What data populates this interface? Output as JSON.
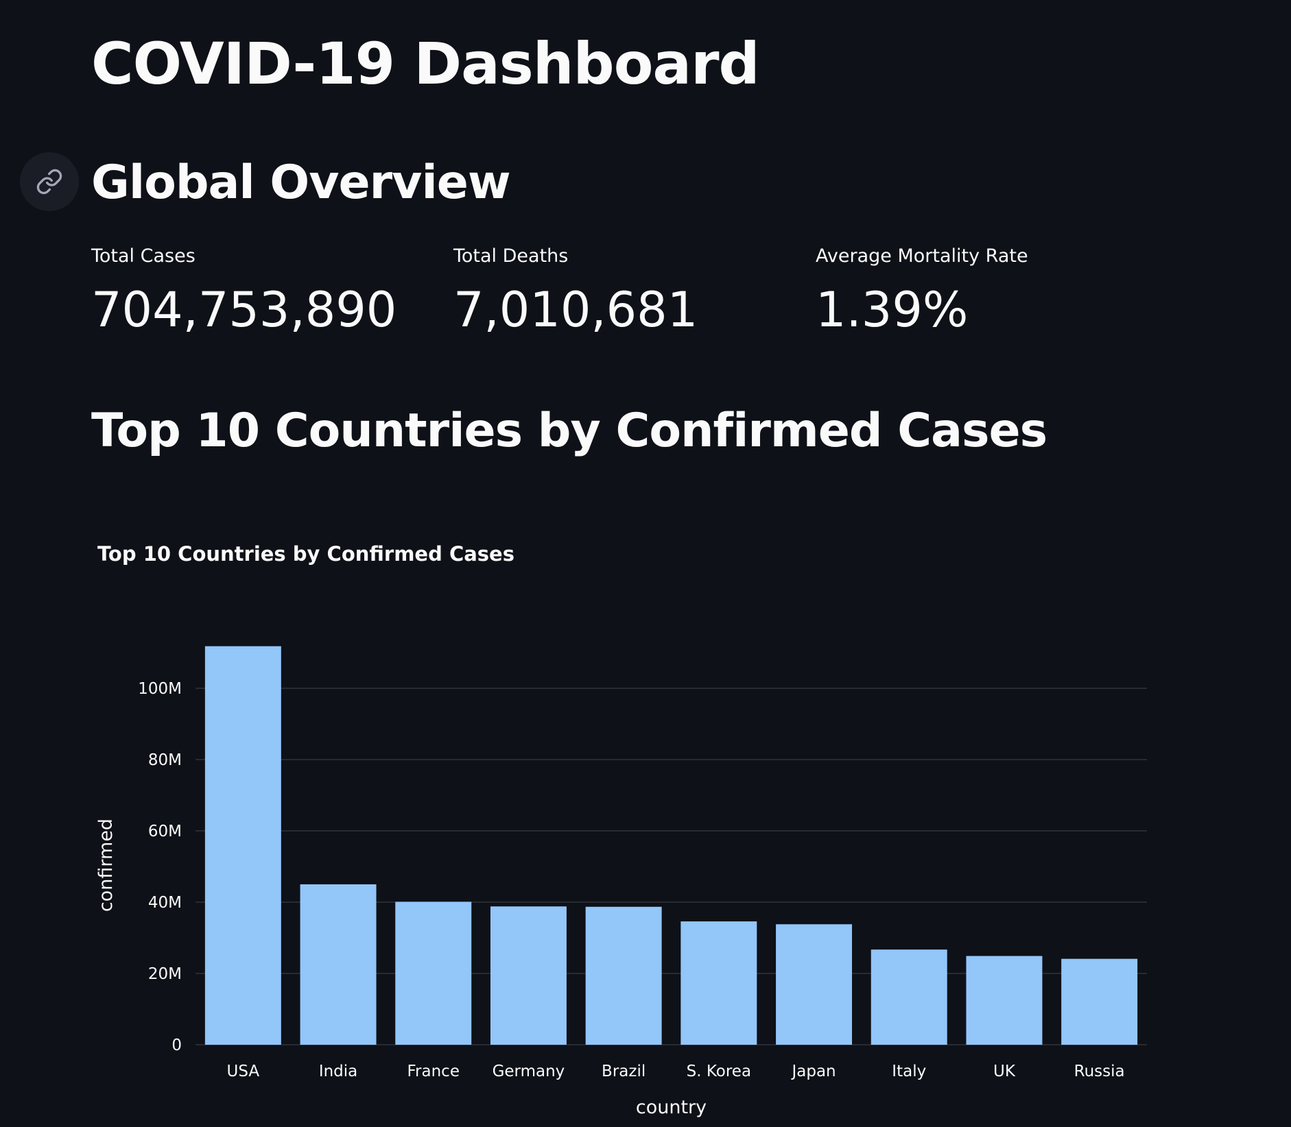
{
  "page": {
    "title": "COVID-19 Dashboard"
  },
  "overview": {
    "heading": "Global Overview",
    "anchor_icon": "link-icon",
    "metrics": [
      {
        "label": "Total Cases",
        "value": "704,753,890"
      },
      {
        "label": "Total Deaths",
        "value": "7,010,681"
      },
      {
        "label": "Average Mortality Rate",
        "value": "1.39%"
      }
    ]
  },
  "top10": {
    "heading": "Top 10 Countries by Confirmed Cases"
  },
  "colors": {
    "background": "#0e1117",
    "bar": "#93c6f9",
    "text": "#fafafa",
    "grid": "#31333f"
  },
  "chart_data": {
    "type": "bar",
    "title": "Top 10 Countries by Confirmed Cases",
    "xlabel": "country",
    "ylabel": "confirmed",
    "categories": [
      "USA",
      "India",
      "France",
      "Germany",
      "Brazil",
      "S. Korea",
      "Japan",
      "Italy",
      "UK",
      "Russia"
    ],
    "values": [
      111800000,
      45000000,
      40100000,
      38800000,
      38700000,
      34600000,
      33800000,
      26700000,
      24900000,
      24100000
    ],
    "ylim": [
      0,
      120000000
    ],
    "yticks": [
      0,
      20000000,
      40000000,
      60000000,
      80000000,
      100000000
    ],
    "ytick_labels": [
      "0",
      "20M",
      "40M",
      "60M",
      "80M",
      "100M"
    ],
    "grid": true,
    "legend": "none"
  }
}
